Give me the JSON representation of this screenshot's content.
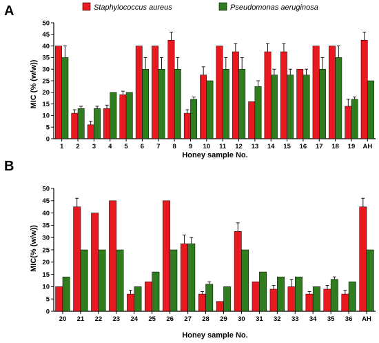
{
  "colors": {
    "series_1": "#e8191f",
    "series_2": "#2f7d1e",
    "axis": "#000000"
  },
  "chart_data": [
    {
      "panel": "A",
      "type": "bar",
      "ylabel": "MIC (% (w/w))",
      "xlabel": "Honey sample No.",
      "ylim": [
        0,
        50
      ],
      "yticks": [
        0,
        5,
        10,
        15,
        20,
        25,
        30,
        35,
        40,
        45,
        50
      ],
      "categories": [
        "1",
        "2",
        "3",
        "4",
        "5",
        "6",
        "7",
        "8",
        "9",
        "10",
        "11",
        "12",
        "13",
        "14",
        "15",
        "16",
        "17",
        "18",
        "19",
        "AH"
      ],
      "series": [
        {
          "name": "Staphylococcus aureus",
          "values": [
            40,
            11,
            6,
            13,
            19,
            40,
            40,
            42.5,
            11,
            27.5,
            40,
            37.5,
            16,
            37.5,
            37.5,
            30,
            40,
            40,
            14,
            42.5
          ],
          "errors": [
            0,
            1.5,
            1.5,
            1.5,
            1.5,
            0,
            0,
            3.5,
            1.5,
            3.5,
            0,
            3.5,
            0,
            3.5,
            3.5,
            0,
            0,
            0,
            3,
            3.5
          ]
        },
        {
          "name": "Pseudomonas aeruginosa",
          "values": [
            35,
            13,
            13,
            20,
            20,
            30,
            30,
            30,
            17,
            25,
            30,
            30,
            22.5,
            27.5,
            27.5,
            27.5,
            30,
            35,
            17,
            25
          ],
          "errors": [
            5,
            1,
            1,
            0,
            0,
            5,
            5,
            5,
            1,
            0,
            5,
            5,
            2.5,
            2.5,
            2.5,
            2.5,
            5,
            5,
            1,
            0
          ]
        }
      ]
    },
    {
      "panel": "B",
      "type": "bar",
      "ylabel": "MIC(% (w/w))",
      "xlabel": "Honey sample No.",
      "ylim": [
        0,
        50
      ],
      "yticks": [
        0,
        5,
        10,
        15,
        20,
        25,
        30,
        35,
        40,
        45,
        50
      ],
      "categories": [
        "20",
        "21",
        "22",
        "23",
        "24",
        "25",
        "26",
        "27",
        "28",
        "29",
        "30",
        "31",
        "32",
        "33",
        "34",
        "35",
        "36",
        "AH"
      ],
      "series": [
        {
          "name": "Staphylococcus aureus",
          "values": [
            10,
            42.5,
            40,
            45,
            7,
            12,
            45,
            27.5,
            7,
            4,
            32.5,
            12,
            9,
            10,
            7,
            9,
            7,
            42.5
          ],
          "errors": [
            0,
            3.5,
            0,
            0,
            1.5,
            0,
            0,
            3.5,
            1,
            0,
            3.5,
            0,
            1.5,
            3,
            1,
            1.5,
            1.5,
            3.5
          ]
        },
        {
          "name": "Pseudomonas aeruginosa",
          "values": [
            14,
            25,
            25,
            25,
            10,
            16,
            25,
            27.5,
            11,
            10,
            25,
            16,
            14,
            14,
            10,
            13,
            12,
            25
          ],
          "errors": [
            0,
            0,
            0,
            0,
            0,
            0,
            0,
            2.5,
            1,
            0,
            0,
            0,
            0,
            0,
            0,
            1,
            0,
            0
          ]
        }
      ]
    }
  ]
}
